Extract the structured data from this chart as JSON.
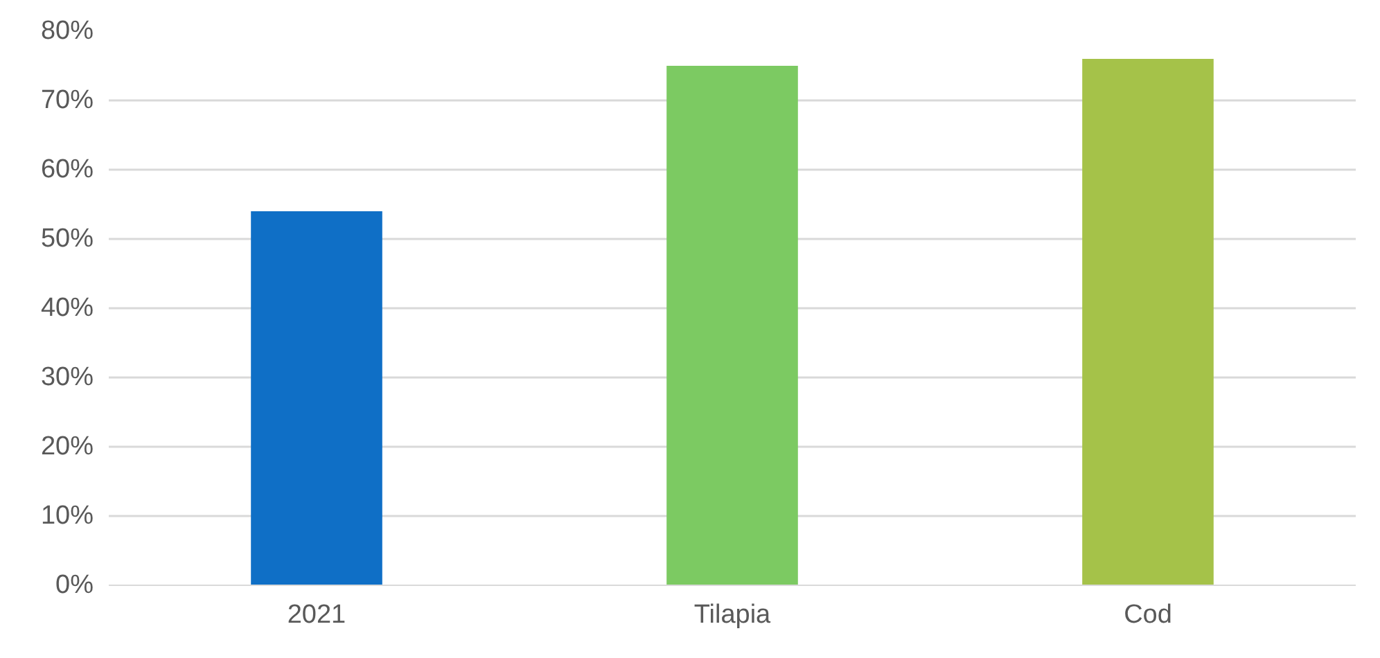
{
  "chart_data": {
    "type": "bar",
    "categories": [
      "2021",
      "Tilapia",
      "Cod"
    ],
    "values": [
      54,
      75,
      76
    ],
    "colors": [
      "#0f6fc6",
      "#7cca62",
      "#a5c249"
    ],
    "ylim": [
      0,
      80
    ],
    "yticks": [
      {
        "value": 0,
        "label": "0%"
      },
      {
        "value": 10,
        "label": "10%"
      },
      {
        "value": 20,
        "label": "20%"
      },
      {
        "value": 30,
        "label": "30%"
      },
      {
        "value": 40,
        "label": "40%"
      },
      {
        "value": 50,
        "label": "50%"
      },
      {
        "value": 60,
        "label": "60%"
      },
      {
        "value": 70,
        "label": "70%"
      },
      {
        "value": 80,
        "label": "80%"
      }
    ],
    "grid": "y"
  }
}
